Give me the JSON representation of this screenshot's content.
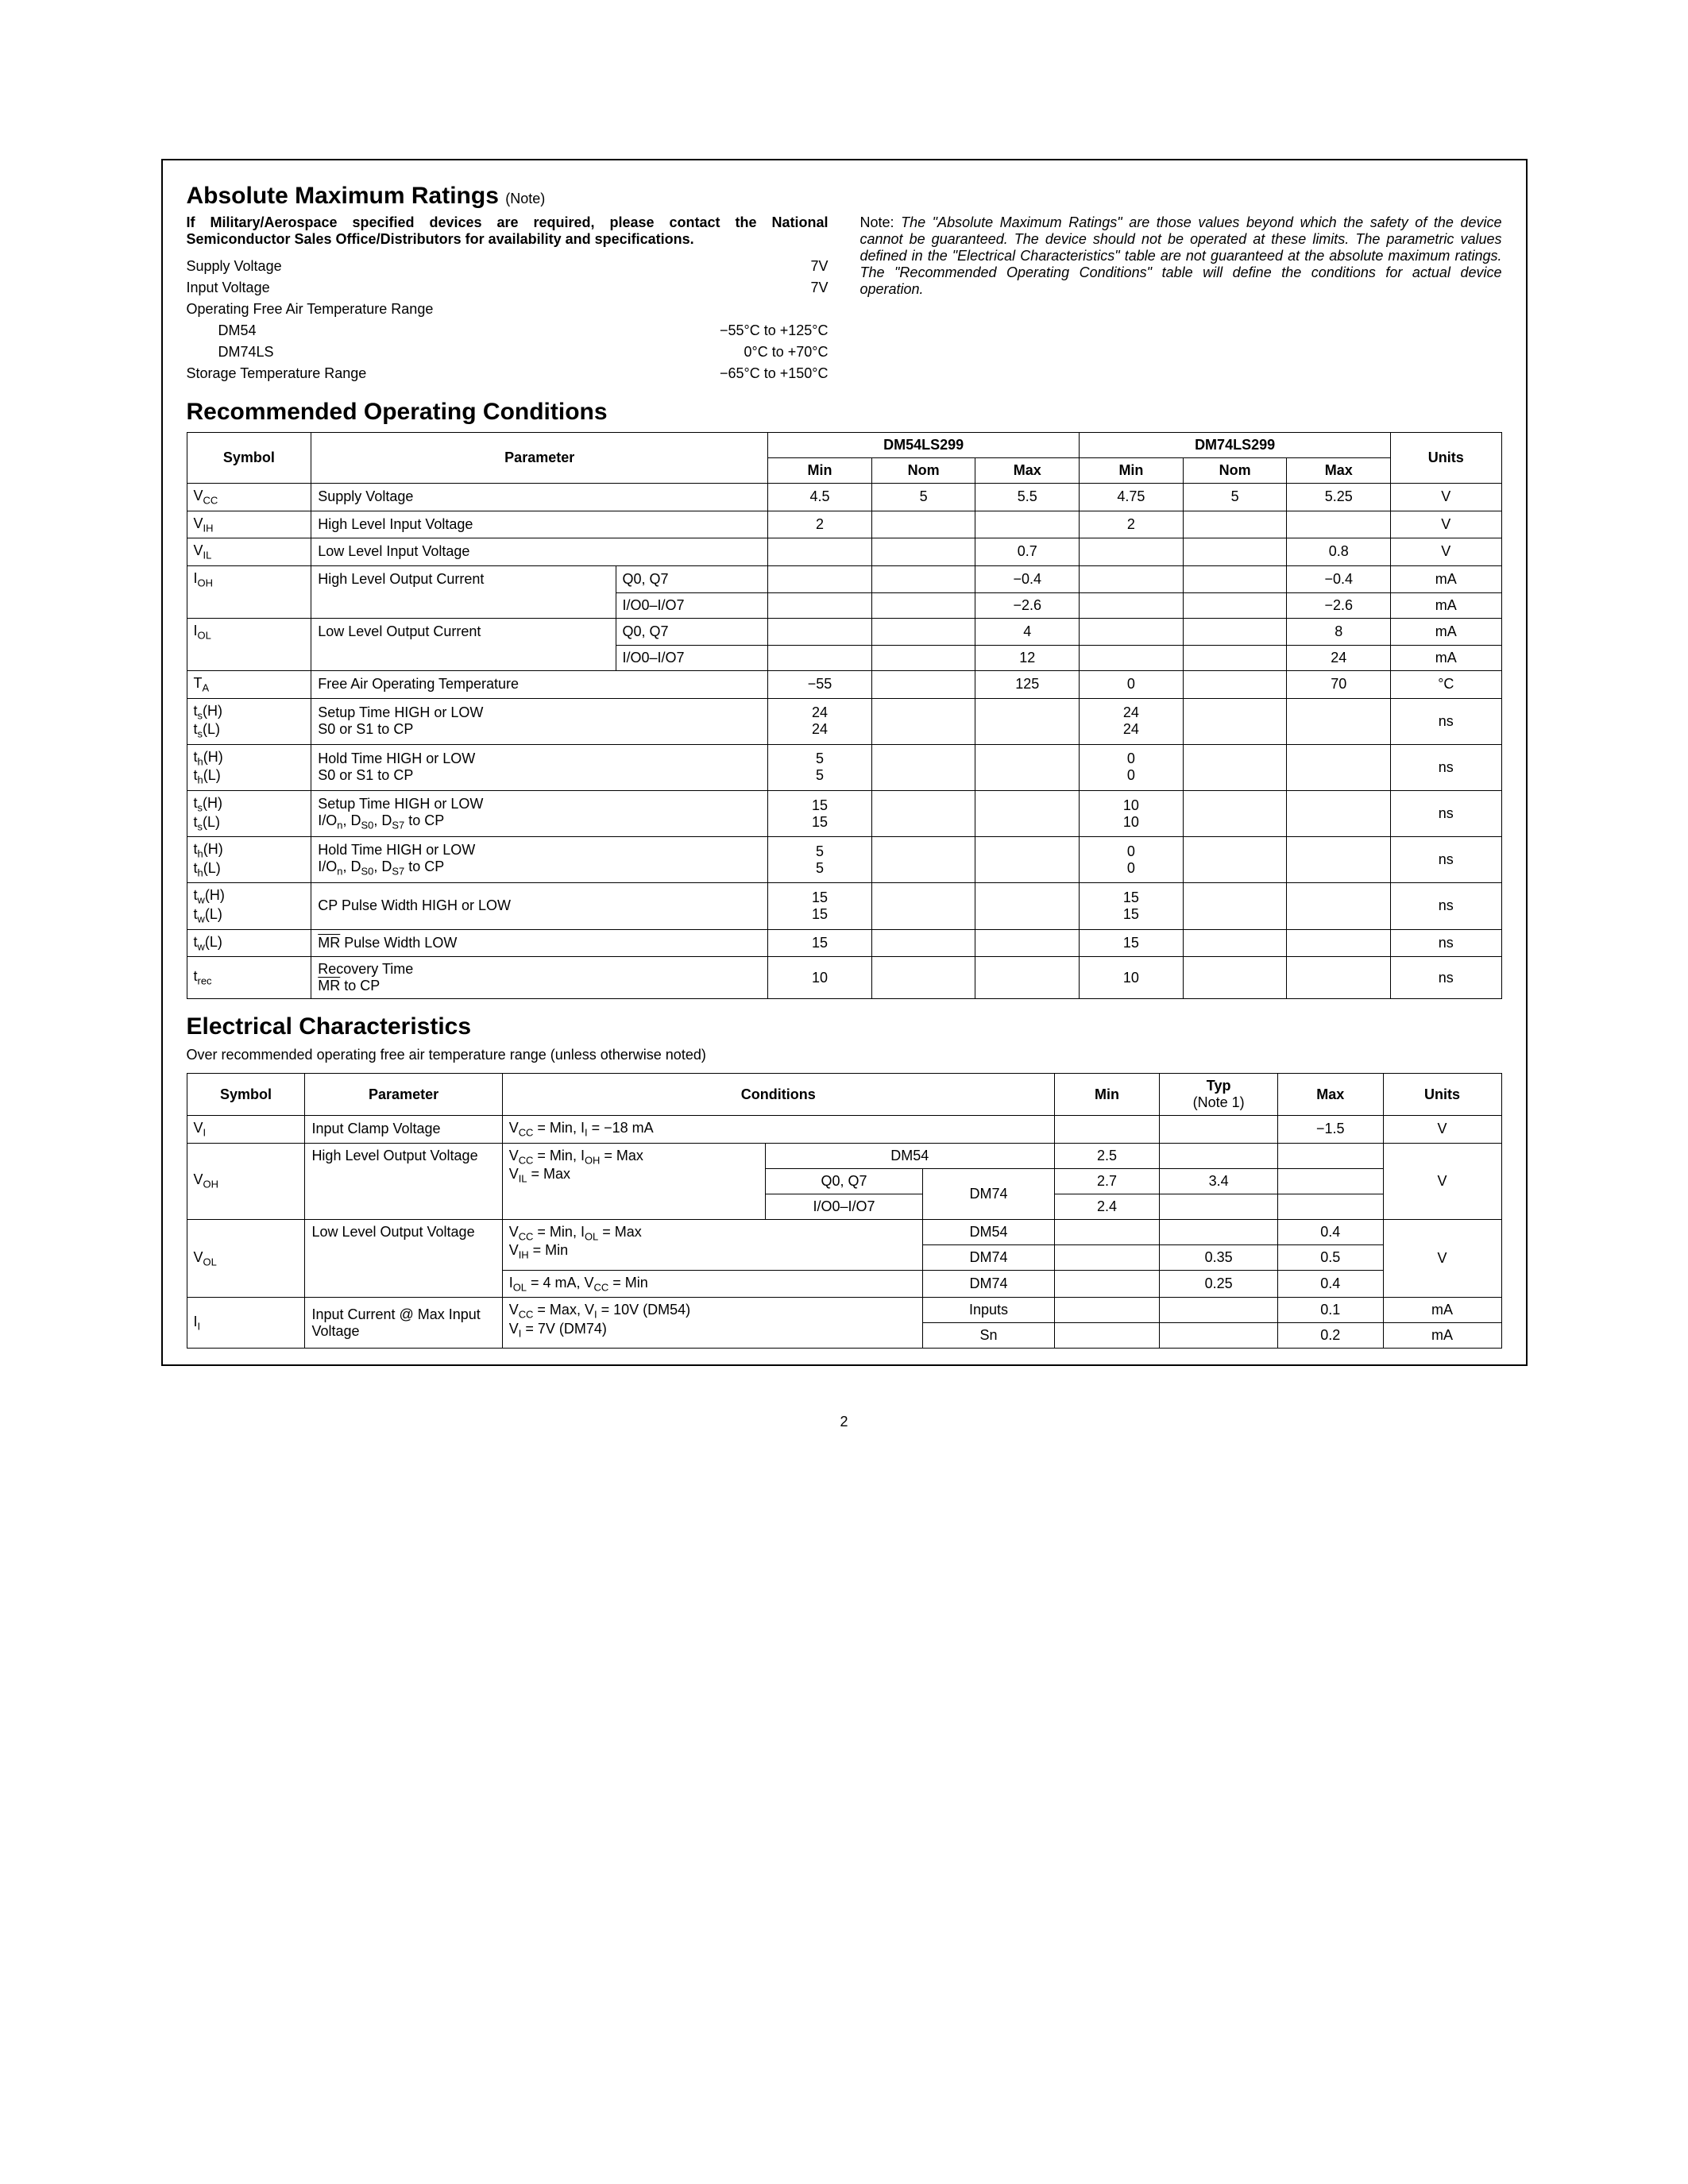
{
  "page_number": "2",
  "amr": {
    "heading": "Absolute Maximum Ratings",
    "heading_note": "(Note)",
    "military_note": "If Military/Aerospace specified devices are required, please contact the National Semiconductor Sales Office/Distributors for availability and specifications.",
    "rows": [
      {
        "label": "Supply Voltage",
        "value": "7V"
      },
      {
        "label": "Input Voltage",
        "value": "7V"
      }
    ],
    "temp_heading": "Operating Free Air Temperature Range",
    "temp_rows": [
      {
        "label": "DM54",
        "value": "−55°C to +125°C"
      },
      {
        "label": "DM74LS",
        "value": "0°C to +70°C"
      }
    ],
    "storage": {
      "label": "Storage Temperature Range",
      "value": "−65°C to +150°C"
    },
    "side_note_prefix": "Note:",
    "side_note": "The \"Absolute Maximum Ratings\" are those values beyond which the safety of the device cannot be guaranteed. The device should not be operated at these limits. The parametric values defined in the \"Electrical Characteristics\" table are not guaranteed at the absolute maximum ratings. The \"Recommended Operating Conditions\" table will define the conditions for actual device operation."
  },
  "roc": {
    "heading": "Recommended Operating Conditions",
    "headers": {
      "symbol": "Symbol",
      "parameter": "Parameter",
      "part1": "DM54LS299",
      "part2": "DM74LS299",
      "min": "Min",
      "nom": "Nom",
      "max": "Max",
      "units": "Units"
    },
    "rows": {
      "vcc": {
        "sym_html": "V<span class=\"sub\">CC</span>",
        "param": "Supply Voltage",
        "min1": "4.5",
        "nom1": "5",
        "max1": "5.5",
        "min2": "4.75",
        "nom2": "5",
        "max2": "5.25",
        "units": "V"
      },
      "vih": {
        "sym_html": "V<span class=\"sub\">IH</span>",
        "param": "High Level Input Voltage",
        "min1": "2",
        "min2": "2",
        "units": "V"
      },
      "vil": {
        "sym_html": "V<span class=\"sub\">IL</span>",
        "param": "Low Level Input Voltage",
        "max1": "0.7",
        "max2": "0.8",
        "units": "V"
      },
      "ioh": {
        "sym_html": "I<span class=\"sub\">OH</span>",
        "param": "High Level Output Current",
        "sub1": {
          "cond": "Q0, Q7",
          "max1": "−0.4",
          "max2": "−0.4",
          "units": "mA"
        },
        "sub2": {
          "cond": "I/O0–I/O7",
          "max1": "−2.6",
          "max2": "−2.6",
          "units": "mA"
        }
      },
      "iol": {
        "sym_html": "I<span class=\"sub\">OL</span>",
        "param": "Low Level Output Current",
        "sub1": {
          "cond": "Q0, Q7",
          "max1": "4",
          "max2": "8",
          "units": "mA"
        },
        "sub2": {
          "cond": "I/O0–I/O7",
          "max1": "12",
          "max2": "24",
          "units": "mA"
        }
      },
      "ta": {
        "sym_html": "T<span class=\"sub\">A</span>",
        "param": "Free Air Operating Temperature",
        "min1": "−55",
        "max1": "125",
        "min2": "0",
        "max2": "70",
        "units": "°C"
      },
      "tsS": {
        "sym_html": "t<span class=\"sub\">s</span>(H)<br>t<span class=\"sub\">s</span>(L)",
        "param": "Setup Time HIGH or LOW<br>S0 or S1 to CP",
        "min1": "24<br>24",
        "min2": "24<br>24",
        "units": "ns"
      },
      "thS": {
        "sym_html": "t<span class=\"sub\">h</span>(H)<br>t<span class=\"sub\">h</span>(L)",
        "param": "Hold Time HIGH or LOW<br>S0 or S1 to CP",
        "min1": "5<br>5",
        "min2": "0<br>0",
        "units": "ns"
      },
      "tsIO": {
        "sym_html": "t<span class=\"sub\">s</span>(H)<br>t<span class=\"sub\">s</span>(L)",
        "param_html": "Setup Time HIGH or LOW<br>I/O<span class=\"sub\">n</span>, D<span class=\"sub\">S0</span>, D<span class=\"sub\">S7</span> to CP",
        "min1": "15<br>15",
        "min2": "10<br>10",
        "units": "ns"
      },
      "thIO": {
        "sym_html": "t<span class=\"sub\">h</span>(H)<br>t<span class=\"sub\">h</span>(L)",
        "param_html": "Hold Time HIGH or LOW<br>I/O<span class=\"sub\">n</span>, D<span class=\"sub\">S0</span>, D<span class=\"sub\">S7</span> to CP",
        "min1": "5<br>5",
        "min2": "0<br>0",
        "units": "ns"
      },
      "twCP": {
        "sym_html": "t<span class=\"sub\">w</span>(H)<br>t<span class=\"sub\">w</span>(L)",
        "param": "CP Pulse Width HIGH or LOW",
        "min1": "15<br>15",
        "min2": "15<br>15",
        "units": "ns"
      },
      "twMR": {
        "sym_html": "t<span class=\"sub\">w</span>(L)",
        "param_html": "<span class=\"overline\">MR</span> Pulse Width LOW",
        "min1": "15",
        "min2": "15",
        "units": "ns"
      },
      "trec": {
        "sym_html": "t<span class=\"sub\">rec</span>",
        "param_html": "Recovery Time<br><span class=\"overline\">MR</span> to CP",
        "min1": "10",
        "min2": "10",
        "units": "ns"
      }
    }
  },
  "ec": {
    "heading": "Electrical Characteristics",
    "subhead": "Over recommended operating free air temperature range (unless otherwise noted)",
    "headers": {
      "symbol": "Symbol",
      "parameter": "Parameter",
      "conditions": "Conditions",
      "min": "Min",
      "typ": "Typ",
      "typ_note": "(Note 1)",
      "max": "Max",
      "units": "Units"
    },
    "rows": {
      "vi": {
        "sym_html": "V<span class=\"sub\">I</span>",
        "param": "Input Clamp Voltage",
        "cond_html": "V<span class=\"sub\">CC</span> = Min, I<span class=\"sub\">I</span> = −18 mA",
        "max": "−1.5",
        "units": "V"
      },
      "voh": {
        "sym_html": "V<span class=\"sub\">OH</span>",
        "param": "High Level Output Voltage",
        "cond_a_html": "V<span class=\"sub\">CC</span> = Min, I<span class=\"sub\">OH</span> = Max<br>V<span class=\"sub\">IL</span> = Max",
        "r1": {
          "part": "DM54",
          "min": "2.5"
        },
        "r2": {
          "part": "DM74",
          "sub": "Q0, Q7",
          "min": "2.7",
          "typ": "3.4"
        },
        "r3": {
          "sub": "I/O0–I/O7",
          "min": "2.4"
        },
        "units": "V"
      },
      "vol": {
        "sym_html": "V<span class=\"sub\">OL</span>",
        "param": "Low Level Output Voltage",
        "cond_a_html": "V<span class=\"sub\">CC</span> = Min, I<span class=\"sub\">OL</span> = Max<br>V<span class=\"sub\">IH</span> = Min",
        "cond_b_html": "I<span class=\"sub\">OL</span> = 4 mA, V<span class=\"sub\">CC</span> = Min",
        "r1": {
          "part": "DM54",
          "max": "0.4"
        },
        "r2": {
          "part": "DM74",
          "typ": "0.35",
          "max": "0.5"
        },
        "r3": {
          "part": "DM74",
          "typ": "0.25",
          "max": "0.4"
        },
        "units": "V"
      },
      "ii": {
        "sym_html": "I<span class=\"sub\">I</span>",
        "param": "Input Current @ Max Input Voltage",
        "cond_html": "V<span class=\"sub\">CC</span> = Max, V<span class=\"sub\">I</span> = 10V (DM54)<br>V<span class=\"sub\">I</span> = 7V (DM74)",
        "r1": {
          "part": "Inputs",
          "max": "0.1",
          "units": "mA"
        },
        "r2": {
          "part": "Sn",
          "max": "0.2",
          "units": "mA"
        }
      }
    }
  }
}
